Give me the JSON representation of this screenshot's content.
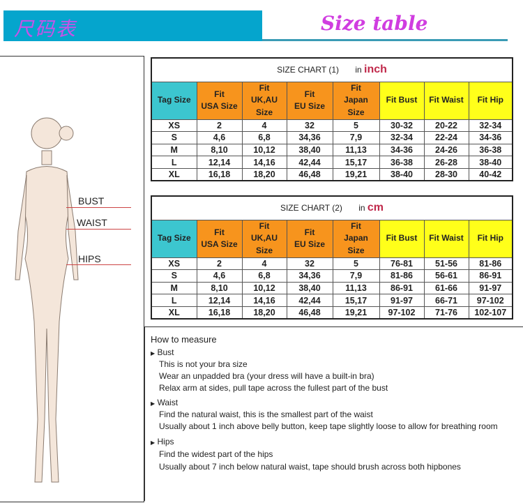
{
  "banner": {
    "logo_text": "尺码表",
    "title": "Size table",
    "colors": {
      "banner": "#05a5cd",
      "title": "#d03de0"
    }
  },
  "figure": {
    "labels": {
      "bust": "BUST",
      "waist": "WAIST",
      "hips": "HIPS"
    }
  },
  "headers": [
    "Tag Size",
    "Fit\nUSA Size",
    "Fit\nUK,AU\nSize",
    "Fit\nEU Size",
    "Fit\nJapan\nSize",
    "Fit Bust",
    "Fit Waist",
    "Fit Hip"
  ],
  "tables": [
    {
      "title": "SIZE CHART (1)",
      "unit_prefix": "in",
      "unit": "inch",
      "rows": [
        [
          "XS",
          "2",
          "4",
          "32",
          "5",
          "30-32",
          "20-22",
          "32-34"
        ],
        [
          "S",
          "4,6",
          "6,8",
          "34,36",
          "7,9",
          "32-34",
          "22-24",
          "34-36"
        ],
        [
          "M",
          "8,10",
          "10,12",
          "38,40",
          "11,13",
          "34-36",
          "24-26",
          "36-38"
        ],
        [
          "L",
          "12,14",
          "14,16",
          "42,44",
          "15,17",
          "36-38",
          "26-28",
          "38-40"
        ],
        [
          "XL",
          "16,18",
          "18,20",
          "46,48",
          "19,21",
          "38-40",
          "28-30",
          "40-42"
        ]
      ]
    },
    {
      "title": "SIZE CHART (2)",
      "unit_prefix": "in",
      "unit": "cm",
      "rows": [
        [
          "XS",
          "2",
          "4",
          "32",
          "5",
          "76-81",
          "51-56",
          "81-86"
        ],
        [
          "S",
          "4,6",
          "6,8",
          "34,36",
          "7,9",
          "81-86",
          "56-61",
          "86-91"
        ],
        [
          "M",
          "8,10",
          "10,12",
          "38,40",
          "11,13",
          "86-91",
          "61-66",
          "91-97"
        ],
        [
          "L",
          "12,14",
          "14,16",
          "42,44",
          "15,17",
          "91-97",
          "66-71",
          "97-102"
        ],
        [
          "XL",
          "16,18",
          "18,20",
          "46,48",
          "19,21",
          "97-102",
          "71-76",
          "102-107"
        ]
      ]
    }
  ],
  "how": {
    "title": "How to measure",
    "sections": [
      {
        "name": "Bust",
        "lines": [
          "This is not your bra size",
          "Wear an unpadded bra (your dress will have a built-in bra)",
          "Relax arm at sides, pull tape across the fullest part of the bust"
        ]
      },
      {
        "name": "Waist",
        "lines": [
          "Find the natural waist, this is the smallest part of the waist",
          "Usually about 1 inch above belly button, keep tape slightly loose to allow for breathing room"
        ]
      },
      {
        "name": "Hips",
        "lines": [
          "Find the widest part of the hips",
          "Usually about 7 inch below natural waist, tape should brush across both hipbones"
        ]
      }
    ]
  }
}
